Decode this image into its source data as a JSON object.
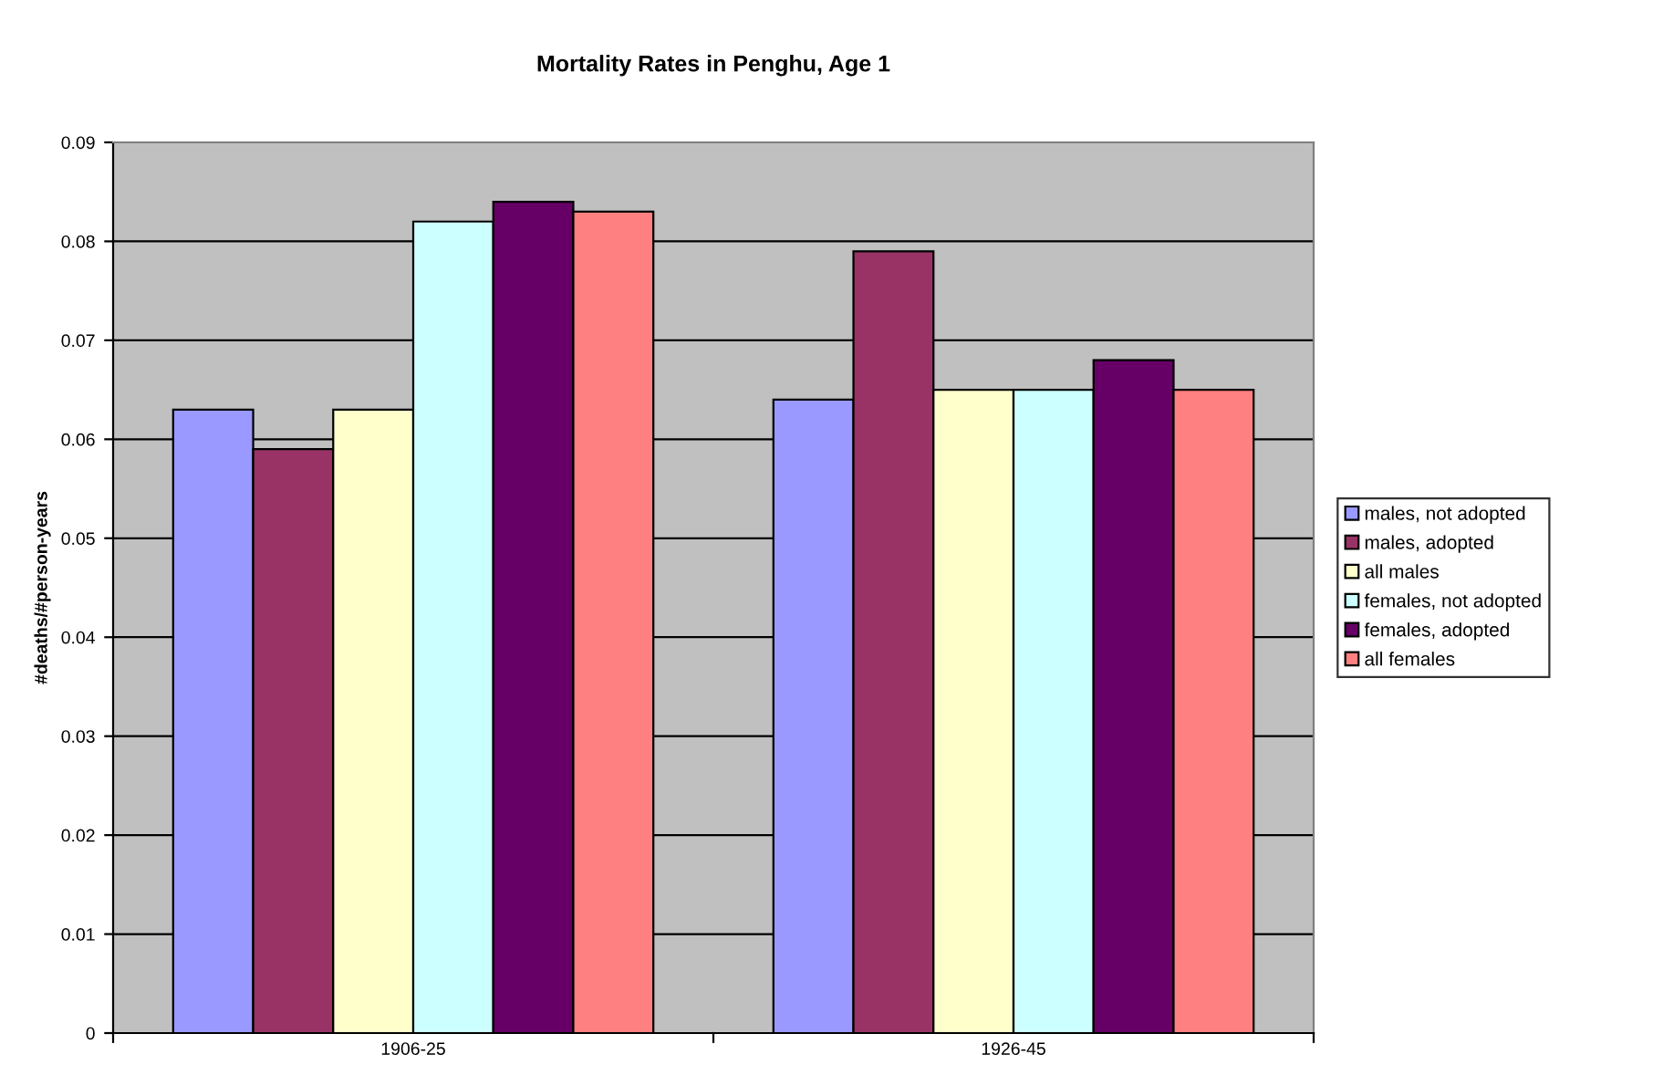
{
  "chart_data": {
    "type": "bar",
    "title": "Mortality Rates in Penghu, Age 1",
    "ylabel": "#deaths/#person-years",
    "categories": [
      "1906-25",
      "1926-45"
    ],
    "series": [
      {
        "name": "males, not adopted",
        "color": "#9999ff",
        "values": [
          0.063,
          0.064
        ]
      },
      {
        "name": "males, adopted",
        "color": "#993366",
        "values": [
          0.059,
          0.079
        ]
      },
      {
        "name": "all males",
        "color": "#ffffcc",
        "values": [
          0.063,
          0.065
        ]
      },
      {
        "name": "females, not adopted",
        "color": "#ccffff",
        "values": [
          0.082,
          0.065
        ]
      },
      {
        "name": "females, adopted",
        "color": "#660066",
        "values": [
          0.084,
          0.068
        ]
      },
      {
        "name": "all females",
        "color": "#ff8080",
        "values": [
          0.083,
          0.065
        ]
      }
    ],
    "ylim": [
      0,
      0.09
    ],
    "yticks": [
      0,
      0.01,
      0.02,
      0.03,
      0.04,
      0.05,
      0.06,
      0.07,
      0.08,
      0.09
    ],
    "grid": "y",
    "legend": "right"
  }
}
